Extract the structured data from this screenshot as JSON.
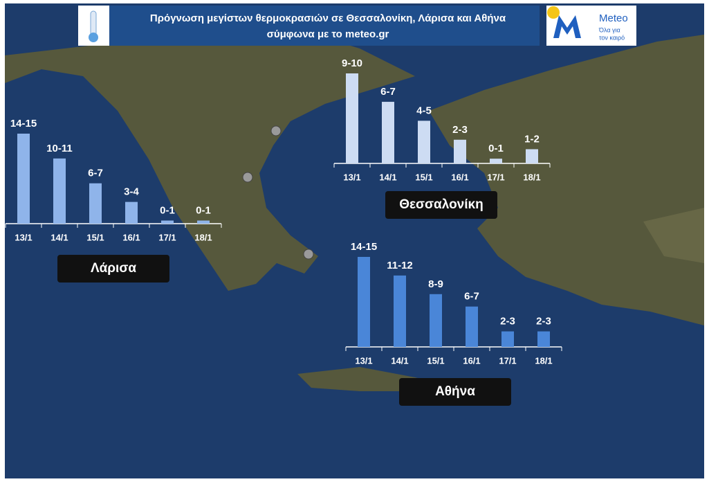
{
  "header": {
    "title": "Πρόγνωση μεγίστων θερμοκρασιών σε Θεσσαλονίκη, Λάρισα και Αθήνα",
    "subtitle": "σύμφωνα με το meteo.gr",
    "logo": "Meteo",
    "slogan_1": "Όλα για",
    "slogan_2": "τον καιρό"
  },
  "chart_data": [
    {
      "type": "bar",
      "title": "Λάρισα",
      "color": "#8fb4ea",
      "categories": [
        "13/1",
        "14/1",
        "15/1",
        "16/1",
        "17/1",
        "18/1"
      ],
      "values": [
        14.5,
        10.5,
        6.5,
        3.5,
        0.5,
        0.5
      ],
      "value_labels": [
        "14-15",
        "10-11",
        "6-7",
        "3-4",
        "0-1",
        "0-1"
      ]
    },
    {
      "type": "bar",
      "title": "Θεσσαλονίκη",
      "color": "#cddcf3",
      "categories": [
        "13/1",
        "14/1",
        "15/1",
        "16/1",
        "17/1",
        "18/1"
      ],
      "values": [
        9.5,
        6.5,
        4.5,
        2.5,
        0.5,
        1.5
      ],
      "value_labels": [
        "9-10",
        "6-7",
        "4-5",
        "2-3",
        "0-1",
        "1-2"
      ]
    },
    {
      "type": "bar",
      "title": "Αθήνα",
      "color": "#4a86d8",
      "categories": [
        "13/1",
        "14/1",
        "15/1",
        "16/1",
        "17/1",
        "18/1"
      ],
      "values": [
        14.5,
        11.5,
        8.5,
        6.5,
        2.5,
        2.5
      ],
      "value_labels": [
        "14-15",
        "11-12",
        "8-9",
        "6-7",
        "2-3",
        "2-3"
      ]
    }
  ]
}
